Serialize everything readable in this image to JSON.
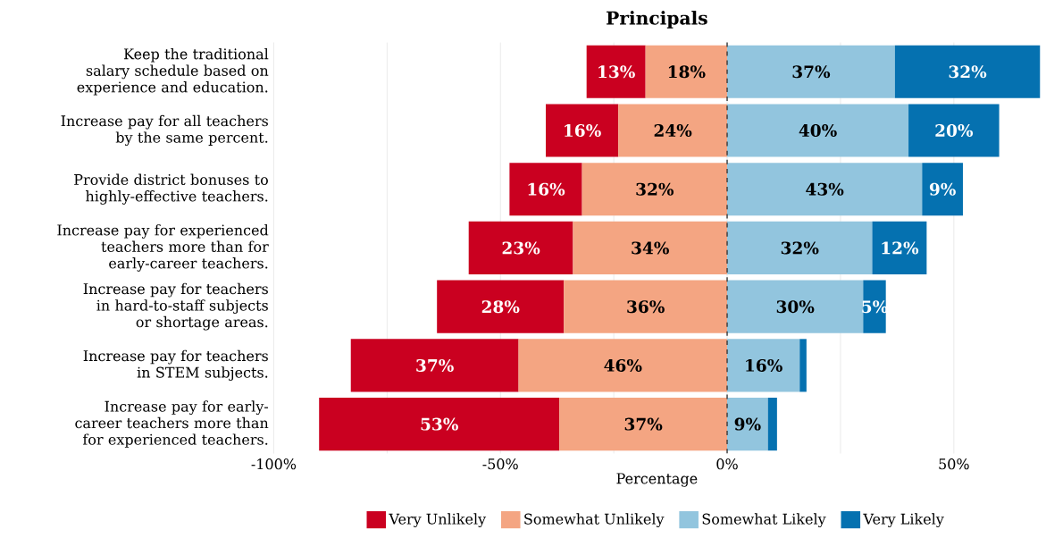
{
  "chart_data": {
    "type": "bar",
    "orientation": "horizontal",
    "title": "Principals",
    "xlabel": "Percentage",
    "categories": [
      "Keep the traditional salary schedule based on experience and education.",
      "Increase pay for all teachers by the same percent.",
      "Provide district bonuses to highly-effective teachers.",
      "Increase pay for experienced teachers more than for early-career teachers.",
      "Increase pay for teachers in hard-to-staff subjects or shortage areas.",
      "Increase pay for teachers in STEM subjects.",
      "Increase pay for early-career teachers more than for experienced teachers."
    ],
    "series": [
      {
        "name": "Very Unlikely",
        "color": "#ca0020",
        "values": [
          13,
          16,
          16,
          23,
          28,
          37,
          53
        ],
        "base": [
          -31,
          -40,
          -48,
          -57,
          -64,
          -83,
          -90
        ],
        "value_labels": [
          "13%",
          "16%",
          "16%",
          "23%",
          "28%",
          "37%",
          "53%"
        ]
      },
      {
        "name": "Somewhat Unlikely",
        "color": "#f4a582",
        "values": [
          18,
          24,
          32,
          34,
          36,
          46,
          37
        ],
        "base": [
          -18,
          -24,
          -32,
          -34,
          -36,
          -46,
          -37
        ],
        "value_labels": [
          "18%",
          "24%",
          "32%",
          "34%",
          "36%",
          "46%",
          "37%"
        ]
      },
      {
        "name": "Somewhat Likely",
        "color": "#92c5de",
        "values": [
          37,
          40,
          43,
          32,
          30,
          16,
          9
        ],
        "base": [
          0,
          0,
          0,
          0,
          0,
          0,
          0
        ],
        "value_labels": [
          "37%",
          "40%",
          "43%",
          "32%",
          "30%",
          "16%",
          "9%"
        ]
      },
      {
        "name": "Very Likely",
        "color": "#0571b0",
        "values": [
          32,
          20,
          9,
          12,
          5,
          1.5,
          2
        ],
        "base": [
          37,
          40,
          43,
          32,
          30,
          16,
          9
        ],
        "value_labels": [
          "32%",
          "20%",
          "9%",
          "12%",
          "5%",
          null,
          null
        ]
      }
    ],
    "xlim": [
      -100,
      69
    ],
    "xticks": [
      {
        "value": -100,
        "label": "-100%"
      },
      {
        "value": -75,
        "label": null
      },
      {
        "value": -50,
        "label": "-50%"
      },
      {
        "value": -25,
        "label": null
      },
      {
        "value": 0,
        "label": "0%"
      },
      {
        "value": 25,
        "label": null
      },
      {
        "value": 50,
        "label": "50%"
      }
    ],
    "ref_lines": [
      {
        "axis": "x",
        "value": 0,
        "line_style": "dashed",
        "color": "#333333"
      }
    ],
    "grid": "x",
    "legend": "bottom"
  }
}
